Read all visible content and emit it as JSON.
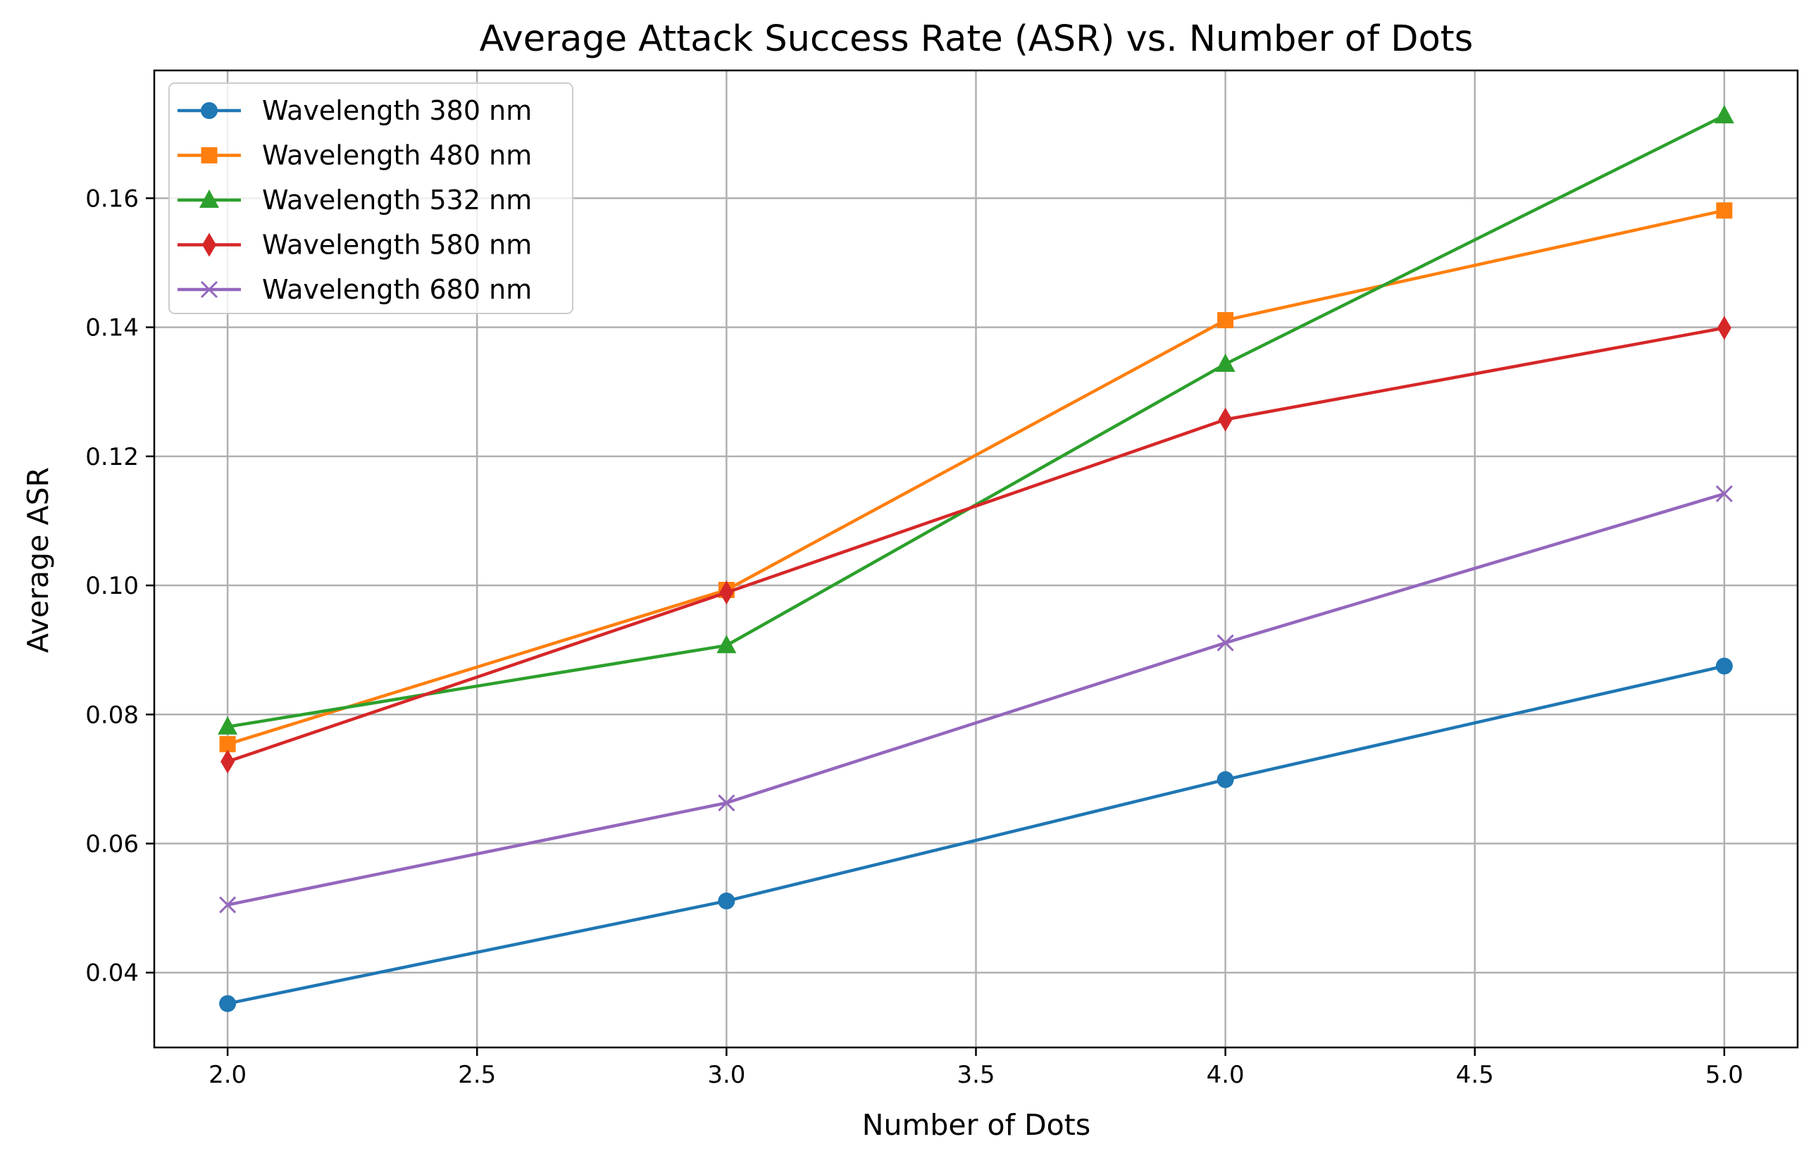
{
  "chart_data": {
    "type": "line",
    "title": "Average Attack Success Rate (ASR) vs. Number of Dots",
    "xlabel": "Number of Dots",
    "ylabel": "Average ASR",
    "x": [
      2.0,
      3.0,
      4.0,
      5.0
    ],
    "xlim": [
      1.853,
      5.147
    ],
    "ylim": [
      0.0284,
      0.1798
    ],
    "xticks": [
      "2.0",
      "2.5",
      "3.0",
      "3.5",
      "4.0",
      "4.5",
      "5.0"
    ],
    "yticks": [
      "0.04",
      "0.06",
      "0.08",
      "0.10",
      "0.12",
      "0.14",
      "0.16"
    ],
    "grid": true,
    "legend_position": "upper-left",
    "series": [
      {
        "name": "Wavelength 380 nm",
        "color": "#1f77b4",
        "marker": "circle",
        "values": [
          0.0352,
          0.0511,
          0.0699,
          0.0875
        ]
      },
      {
        "name": "Wavelength 480 nm",
        "color": "#ff7f0e",
        "marker": "square",
        "values": [
          0.0754,
          0.0993,
          0.1411,
          0.1581
        ]
      },
      {
        "name": "Wavelength 532 nm",
        "color": "#2ca02c",
        "marker": "triangle",
        "values": [
          0.0781,
          0.0907,
          0.1343,
          0.1728
        ]
      },
      {
        "name": "Wavelength 580 nm",
        "color": "#d62728",
        "marker": "diamond",
        "values": [
          0.0727,
          0.0989,
          0.1257,
          0.1399
        ]
      },
      {
        "name": "Wavelength 680 nm",
        "color": "#9467bd",
        "marker": "x",
        "values": [
          0.0505,
          0.0663,
          0.0911,
          0.1142
        ]
      }
    ]
  }
}
